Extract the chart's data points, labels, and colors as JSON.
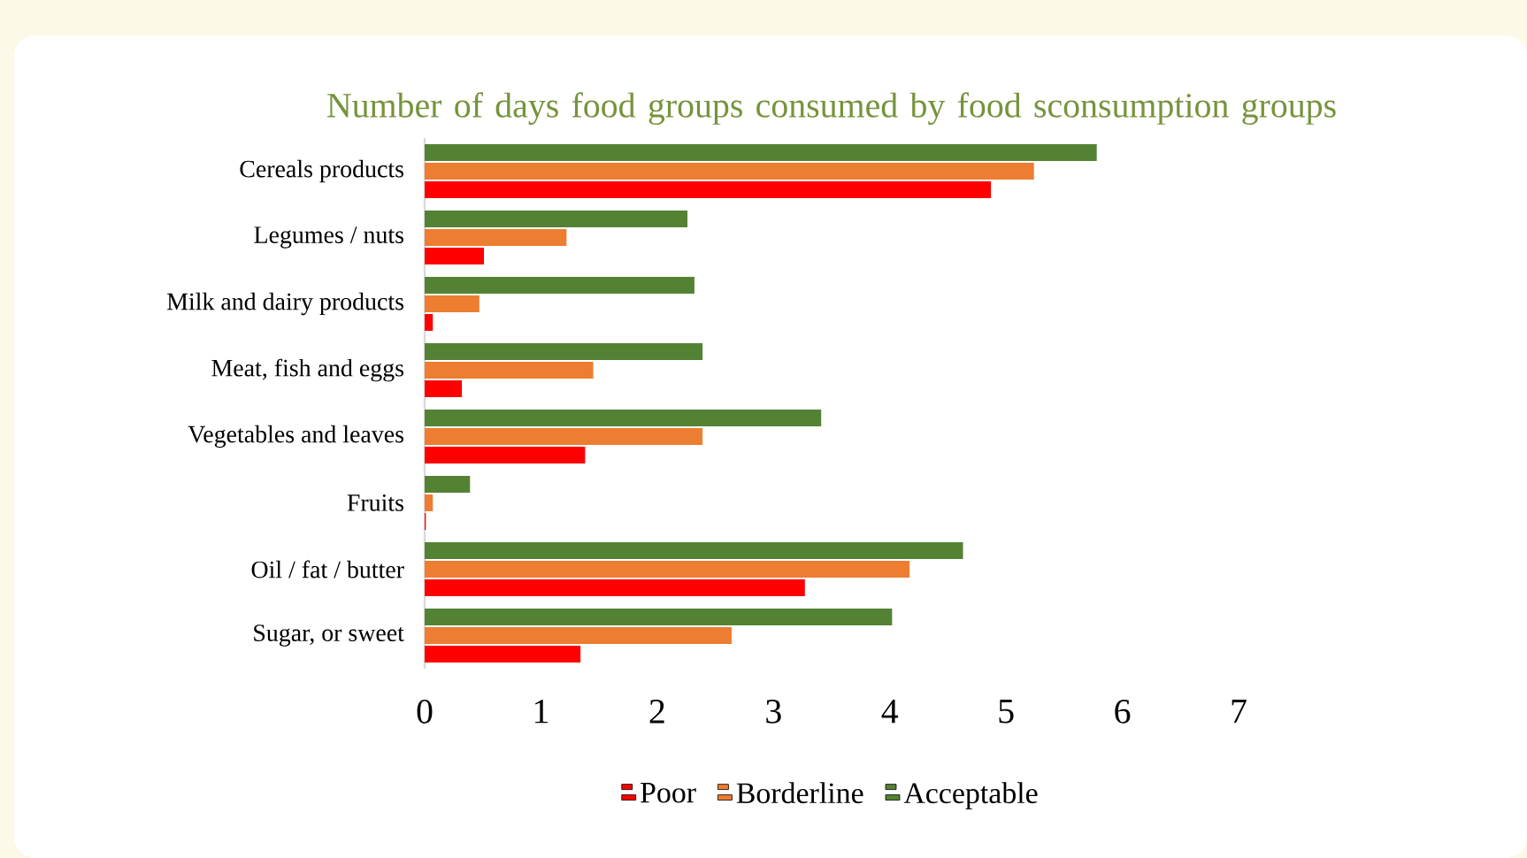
{
  "chart_data": {
    "type": "bar",
    "orientation": "horizontal",
    "title": "Number of days food groups consumed by food sconsumption groups",
    "categories": [
      "Cereals products",
      "Legumes / nuts",
      "Milk and dairy products",
      "Meat, fish and eggs",
      "Vegetables and leaves",
      "Fruits",
      "Oil / fat / butter",
      "Sugar, or sweet"
    ],
    "series": [
      {
        "name": "Poor",
        "color": "#ff0000",
        "values": [
          4.87,
          0.51,
          0.07,
          0.32,
          1.38,
          0.01,
          3.27,
          1.34
        ]
      },
      {
        "name": "Borderline",
        "color": "#ed7d31",
        "values": [
          5.24,
          1.22,
          0.47,
          1.45,
          2.39,
          0.07,
          4.17,
          2.64
        ]
      },
      {
        "name": "Acceptable",
        "color": "#548235",
        "values": [
          5.78,
          2.26,
          2.32,
          2.39,
          3.41,
          0.39,
          4.63,
          4.02
        ]
      }
    ],
    "xlim": [
      0,
      7
    ],
    "xticks": [
      0,
      1,
      2,
      3,
      4,
      5,
      6,
      7
    ],
    "grid": false,
    "legend": "bottom"
  }
}
